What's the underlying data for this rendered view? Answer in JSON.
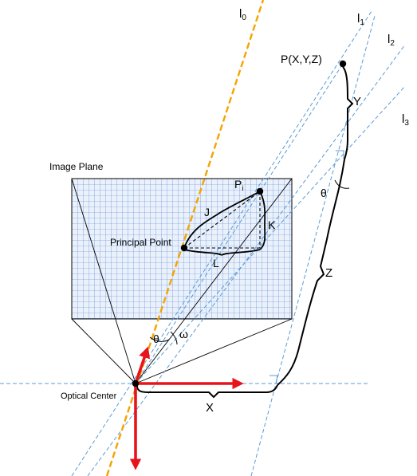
{
  "lines": {
    "l0": {
      "base": "l",
      "sub": "0"
    },
    "l1": {
      "base": "l",
      "sub": "1"
    },
    "l2": {
      "base": "l",
      "sub": "2"
    },
    "l3": {
      "base": "l",
      "sub": "3"
    }
  },
  "labels": {
    "point_p": "P(X,Y,Z)",
    "image_plane": "Image Plane",
    "principal_point": "Principal Point",
    "optical_center": "Optical Center",
    "pi_base": "P",
    "pi_sub": "i",
    "J": "J",
    "K": "K",
    "L": "L",
    "X": "X",
    "Y": "Y",
    "Z": "Z",
    "theta_top": "θ",
    "theta_bottom": "θ",
    "omega": "ω"
  },
  "colors": {
    "blue_dashed": "#5b9bd5",
    "orange_axis": "#f5a300",
    "red_axis": "#e8141b",
    "grid_fill": "#eaf1fb",
    "grid_line": "#4a7fd0"
  }
}
